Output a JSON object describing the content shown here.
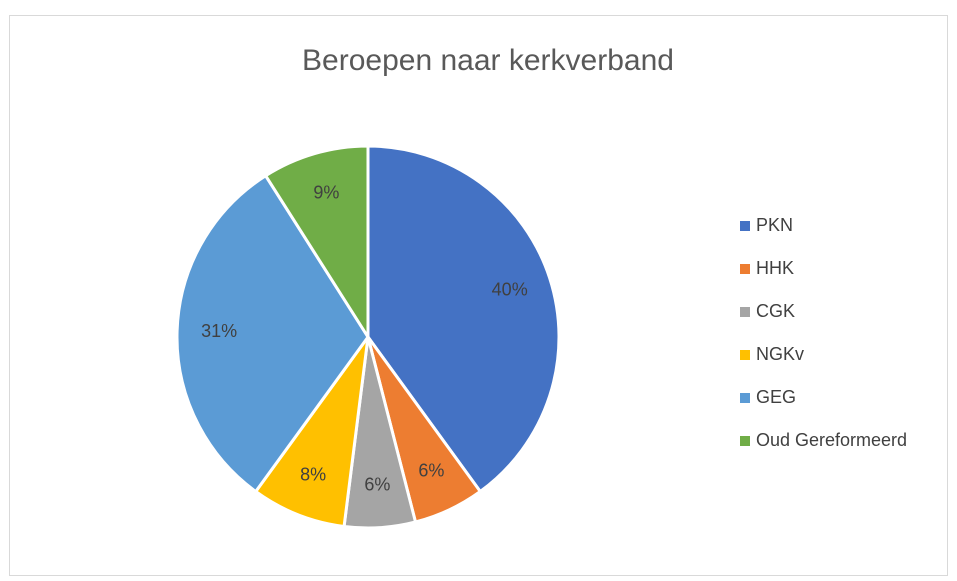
{
  "chart_data": {
    "type": "pie",
    "title": "Beroepen naar kerkverband",
    "categories": [
      "PKN",
      "HHK",
      "CGK",
      "NGKv",
      "GEG",
      "Oud Gereformeerd"
    ],
    "values": [
      40,
      6,
      6,
      8,
      31,
      9
    ],
    "value_labels": [
      "40%",
      "6%",
      "6%",
      "8%",
      "31%",
      "9%"
    ],
    "colors": [
      "#4472c4",
      "#ed7d31",
      "#a5a5a5",
      "#ffc000",
      "#5b9bd5",
      "#70ad47"
    ],
    "legend": "right"
  }
}
